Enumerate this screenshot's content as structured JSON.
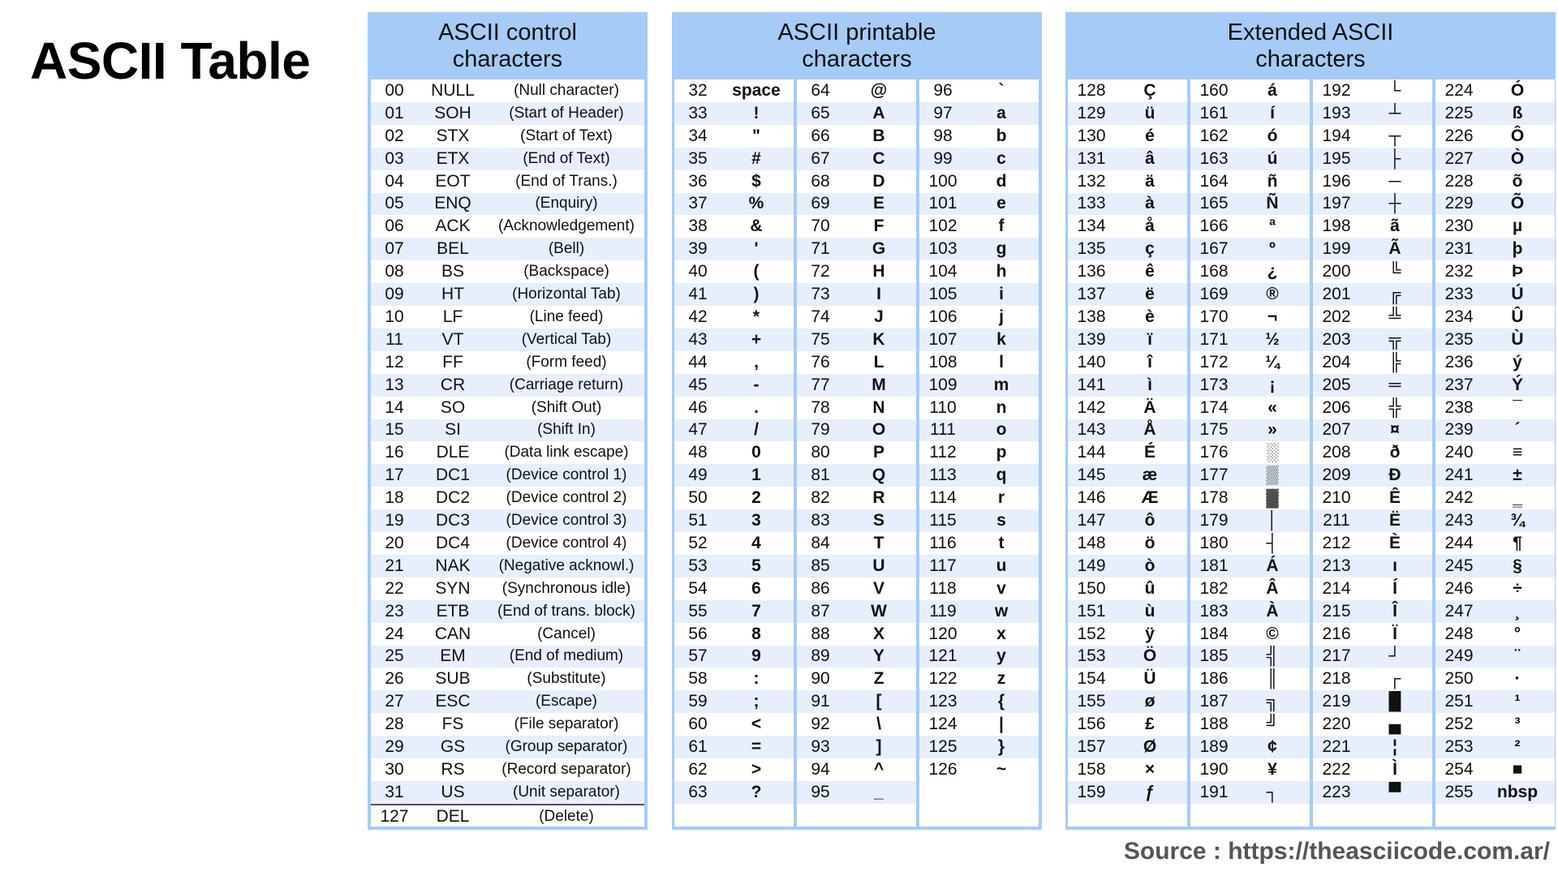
{
  "title": "ASCII Table",
  "source": "Source : https://theasciicode.com.ar/",
  "control": {
    "header": [
      "ASCII control",
      "characters"
    ],
    "rows": [
      [
        "00",
        "NULL",
        "(Null character)"
      ],
      [
        "01",
        "SOH",
        "(Start of Header)"
      ],
      [
        "02",
        "STX",
        "(Start of Text)"
      ],
      [
        "03",
        "ETX",
        "(End of Text)"
      ],
      [
        "04",
        "EOT",
        "(End of Trans.)"
      ],
      [
        "05",
        "ENQ",
        "(Enquiry)"
      ],
      [
        "06",
        "ACK",
        "(Acknowledgement)"
      ],
      [
        "07",
        "BEL",
        "(Bell)"
      ],
      [
        "08",
        "BS",
        "(Backspace)"
      ],
      [
        "09",
        "HT",
        "(Horizontal Tab)"
      ],
      [
        "10",
        "LF",
        "(Line feed)"
      ],
      [
        "11",
        "VT",
        "(Vertical Tab)"
      ],
      [
        "12",
        "FF",
        "(Form feed)"
      ],
      [
        "13",
        "CR",
        "(Carriage return)"
      ],
      [
        "14",
        "SO",
        "(Shift Out)"
      ],
      [
        "15",
        "SI",
        "(Shift In)"
      ],
      [
        "16",
        "DLE",
        "(Data link escape)"
      ],
      [
        "17",
        "DC1",
        "(Device control 1)"
      ],
      [
        "18",
        "DC2",
        "(Device control 2)"
      ],
      [
        "19",
        "DC3",
        "(Device control 3)"
      ],
      [
        "20",
        "DC4",
        "(Device control 4)"
      ],
      [
        "21",
        "NAK",
        "(Negative acknowl.)"
      ],
      [
        "22",
        "SYN",
        "(Synchronous idle)"
      ],
      [
        "23",
        "ETB",
        "(End of trans. block)"
      ],
      [
        "24",
        "CAN",
        "(Cancel)"
      ],
      [
        "25",
        "EM",
        "(End of medium)"
      ],
      [
        "26",
        "SUB",
        "(Substitute)"
      ],
      [
        "27",
        "ESC",
        "(Escape)"
      ],
      [
        "28",
        "FS",
        "(File separator)"
      ],
      [
        "29",
        "GS",
        "(Group separator)"
      ],
      [
        "30",
        "RS",
        "(Record separator)"
      ],
      [
        "31",
        "US",
        "(Unit separator)"
      ],
      [
        "127",
        "DEL",
        "(Delete)"
      ]
    ]
  },
  "printable": {
    "header": [
      "ASCII printable",
      "characters"
    ],
    "columns": [
      [
        [
          "32",
          "space"
        ],
        [
          "33",
          "!"
        ],
        [
          "34",
          "\""
        ],
        [
          "35",
          "#"
        ],
        [
          "36",
          "$"
        ],
        [
          "37",
          "%"
        ],
        [
          "38",
          "&"
        ],
        [
          "39",
          "'"
        ],
        [
          "40",
          "("
        ],
        [
          "41",
          ")"
        ],
        [
          "42",
          "*"
        ],
        [
          "43",
          "+"
        ],
        [
          "44",
          ","
        ],
        [
          "45",
          "-"
        ],
        [
          "46",
          "."
        ],
        [
          "47",
          "/"
        ],
        [
          "48",
          "0"
        ],
        [
          "49",
          "1"
        ],
        [
          "50",
          "2"
        ],
        [
          "51",
          "3"
        ],
        [
          "52",
          "4"
        ],
        [
          "53",
          "5"
        ],
        [
          "54",
          "6"
        ],
        [
          "55",
          "7"
        ],
        [
          "56",
          "8"
        ],
        [
          "57",
          "9"
        ],
        [
          "58",
          ":"
        ],
        [
          "59",
          ";"
        ],
        [
          "60",
          "<"
        ],
        [
          "61",
          "="
        ],
        [
          "62",
          ">"
        ],
        [
          "63",
          "?"
        ]
      ],
      [
        [
          "64",
          "@"
        ],
        [
          "65",
          "A"
        ],
        [
          "66",
          "B"
        ],
        [
          "67",
          "C"
        ],
        [
          "68",
          "D"
        ],
        [
          "69",
          "E"
        ],
        [
          "70",
          "F"
        ],
        [
          "71",
          "G"
        ],
        [
          "72",
          "H"
        ],
        [
          "73",
          "I"
        ],
        [
          "74",
          "J"
        ],
        [
          "75",
          "K"
        ],
        [
          "76",
          "L"
        ],
        [
          "77",
          "M"
        ],
        [
          "78",
          "N"
        ],
        [
          "79",
          "O"
        ],
        [
          "80",
          "P"
        ],
        [
          "81",
          "Q"
        ],
        [
          "82",
          "R"
        ],
        [
          "83",
          "S"
        ],
        [
          "84",
          "T"
        ],
        [
          "85",
          "U"
        ],
        [
          "86",
          "V"
        ],
        [
          "87",
          "W"
        ],
        [
          "88",
          "X"
        ],
        [
          "89",
          "Y"
        ],
        [
          "90",
          "Z"
        ],
        [
          "91",
          "["
        ],
        [
          "92",
          "\\"
        ],
        [
          "93",
          "]"
        ],
        [
          "94",
          "^"
        ],
        [
          "95",
          "_"
        ]
      ],
      [
        [
          "96",
          "`"
        ],
        [
          "97",
          "a"
        ],
        [
          "98",
          "b"
        ],
        [
          "99",
          "c"
        ],
        [
          "100",
          "d"
        ],
        [
          "101",
          "e"
        ],
        [
          "102",
          "f"
        ],
        [
          "103",
          "g"
        ],
        [
          "104",
          "h"
        ],
        [
          "105",
          "i"
        ],
        [
          "106",
          "j"
        ],
        [
          "107",
          "k"
        ],
        [
          "108",
          "l"
        ],
        [
          "109",
          "m"
        ],
        [
          "110",
          "n"
        ],
        [
          "111",
          "o"
        ],
        [
          "112",
          "p"
        ],
        [
          "113",
          "q"
        ],
        [
          "114",
          "r"
        ],
        [
          "115",
          "s"
        ],
        [
          "116",
          "t"
        ],
        [
          "117",
          "u"
        ],
        [
          "118",
          "v"
        ],
        [
          "119",
          "w"
        ],
        [
          "120",
          "x"
        ],
        [
          "121",
          "y"
        ],
        [
          "122",
          "z"
        ],
        [
          "123",
          "{"
        ],
        [
          "124",
          "|"
        ],
        [
          "125",
          "}"
        ],
        [
          "126",
          "~"
        ]
      ]
    ]
  },
  "extended": {
    "header": [
      "Extended ASCII",
      "characters"
    ],
    "columns": [
      [
        [
          "128",
          "Ç"
        ],
        [
          "129",
          "ü"
        ],
        [
          "130",
          "é"
        ],
        [
          "131",
          "â"
        ],
        [
          "132",
          "ä"
        ],
        [
          "133",
          "à"
        ],
        [
          "134",
          "å"
        ],
        [
          "135",
          "ç"
        ],
        [
          "136",
          "ê"
        ],
        [
          "137",
          "ë"
        ],
        [
          "138",
          "è"
        ],
        [
          "139",
          "ï"
        ],
        [
          "140",
          "î"
        ],
        [
          "141",
          "ì"
        ],
        [
          "142",
          "Ä"
        ],
        [
          "143",
          "Å"
        ],
        [
          "144",
          "É"
        ],
        [
          "145",
          "æ"
        ],
        [
          "146",
          "Æ"
        ],
        [
          "147",
          "ô"
        ],
        [
          "148",
          "ö"
        ],
        [
          "149",
          "ò"
        ],
        [
          "150",
          "û"
        ],
        [
          "151",
          "ù"
        ],
        [
          "152",
          "ÿ"
        ],
        [
          "153",
          "Ö"
        ],
        [
          "154",
          "Ü"
        ],
        [
          "155",
          "ø"
        ],
        [
          "156",
          "£"
        ],
        [
          "157",
          "Ø"
        ],
        [
          "158",
          "×"
        ],
        [
          "159",
          "ƒ"
        ]
      ],
      [
        [
          "160",
          "á"
        ],
        [
          "161",
          "í"
        ],
        [
          "162",
          "ó"
        ],
        [
          "163",
          "ú"
        ],
        [
          "164",
          "ñ"
        ],
        [
          "165",
          "Ñ"
        ],
        [
          "166",
          "ª"
        ],
        [
          "167",
          "º"
        ],
        [
          "168",
          "¿"
        ],
        [
          "169",
          "®"
        ],
        [
          "170",
          "¬"
        ],
        [
          "171",
          "½"
        ],
        [
          "172",
          "¼"
        ],
        [
          "173",
          "¡"
        ],
        [
          "174",
          "«"
        ],
        [
          "175",
          "»"
        ],
        [
          "176",
          "░"
        ],
        [
          "177",
          "▒"
        ],
        [
          "178",
          "▓"
        ],
        [
          "179",
          "│"
        ],
        [
          "180",
          "┤"
        ],
        [
          "181",
          "Á"
        ],
        [
          "182",
          "Â"
        ],
        [
          "183",
          "À"
        ],
        [
          "184",
          "©"
        ],
        [
          "185",
          "╣"
        ],
        [
          "186",
          "║"
        ],
        [
          "187",
          "╗"
        ],
        [
          "188",
          "╝"
        ],
        [
          "189",
          "¢"
        ],
        [
          "190",
          "¥"
        ],
        [
          "191",
          "┐"
        ]
      ],
      [
        [
          "192",
          "└"
        ],
        [
          "193",
          "┴"
        ],
        [
          "194",
          "┬"
        ],
        [
          "195",
          "├"
        ],
        [
          "196",
          "─"
        ],
        [
          "197",
          "┼"
        ],
        [
          "198",
          "ã"
        ],
        [
          "199",
          "Ã"
        ],
        [
          "200",
          "╚"
        ],
        [
          "201",
          "╔"
        ],
        [
          "202",
          "╩"
        ],
        [
          "203",
          "╦"
        ],
        [
          "204",
          "╠"
        ],
        [
          "205",
          "═"
        ],
        [
          "206",
          "╬"
        ],
        [
          "207",
          "¤"
        ],
        [
          "208",
          "ð"
        ],
        [
          "209",
          "Ð"
        ],
        [
          "210",
          "Ê"
        ],
        [
          "211",
          "Ë"
        ],
        [
          "212",
          "È"
        ],
        [
          "213",
          "ı"
        ],
        [
          "214",
          "Í"
        ],
        [
          "215",
          "Î"
        ],
        [
          "216",
          "Ï"
        ],
        [
          "217",
          "┘"
        ],
        [
          "218",
          "┌"
        ],
        [
          "219",
          "█"
        ],
        [
          "220",
          "▄"
        ],
        [
          "221",
          "¦"
        ],
        [
          "222",
          "Ì"
        ],
        [
          "223",
          "▀"
        ]
      ],
      [
        [
          "224",
          "Ó"
        ],
        [
          "225",
          "ß"
        ],
        [
          "226",
          "Ô"
        ],
        [
          "227",
          "Ò"
        ],
        [
          "228",
          "õ"
        ],
        [
          "229",
          "Õ"
        ],
        [
          "230",
          "µ"
        ],
        [
          "231",
          "þ"
        ],
        [
          "232",
          "Þ"
        ],
        [
          "233",
          "Ú"
        ],
        [
          "234",
          "Û"
        ],
        [
          "235",
          "Ù"
        ],
        [
          "236",
          "ý"
        ],
        [
          "237",
          "Ý"
        ],
        [
          "238",
          "¯"
        ],
        [
          "239",
          "´"
        ],
        [
          "240",
          "≡"
        ],
        [
          "241",
          "±"
        ],
        [
          "242",
          "‗"
        ],
        [
          "243",
          "¾"
        ],
        [
          "244",
          "¶"
        ],
        [
          "245",
          "§"
        ],
        [
          "246",
          "÷"
        ],
        [
          "247",
          "¸"
        ],
        [
          "248",
          "°"
        ],
        [
          "249",
          "¨"
        ],
        [
          "250",
          "·"
        ],
        [
          "251",
          "¹"
        ],
        [
          "252",
          "³"
        ],
        [
          "253",
          "²"
        ],
        [
          "254",
          "■"
        ],
        [
          "255",
          "nbsp"
        ]
      ]
    ]
  }
}
